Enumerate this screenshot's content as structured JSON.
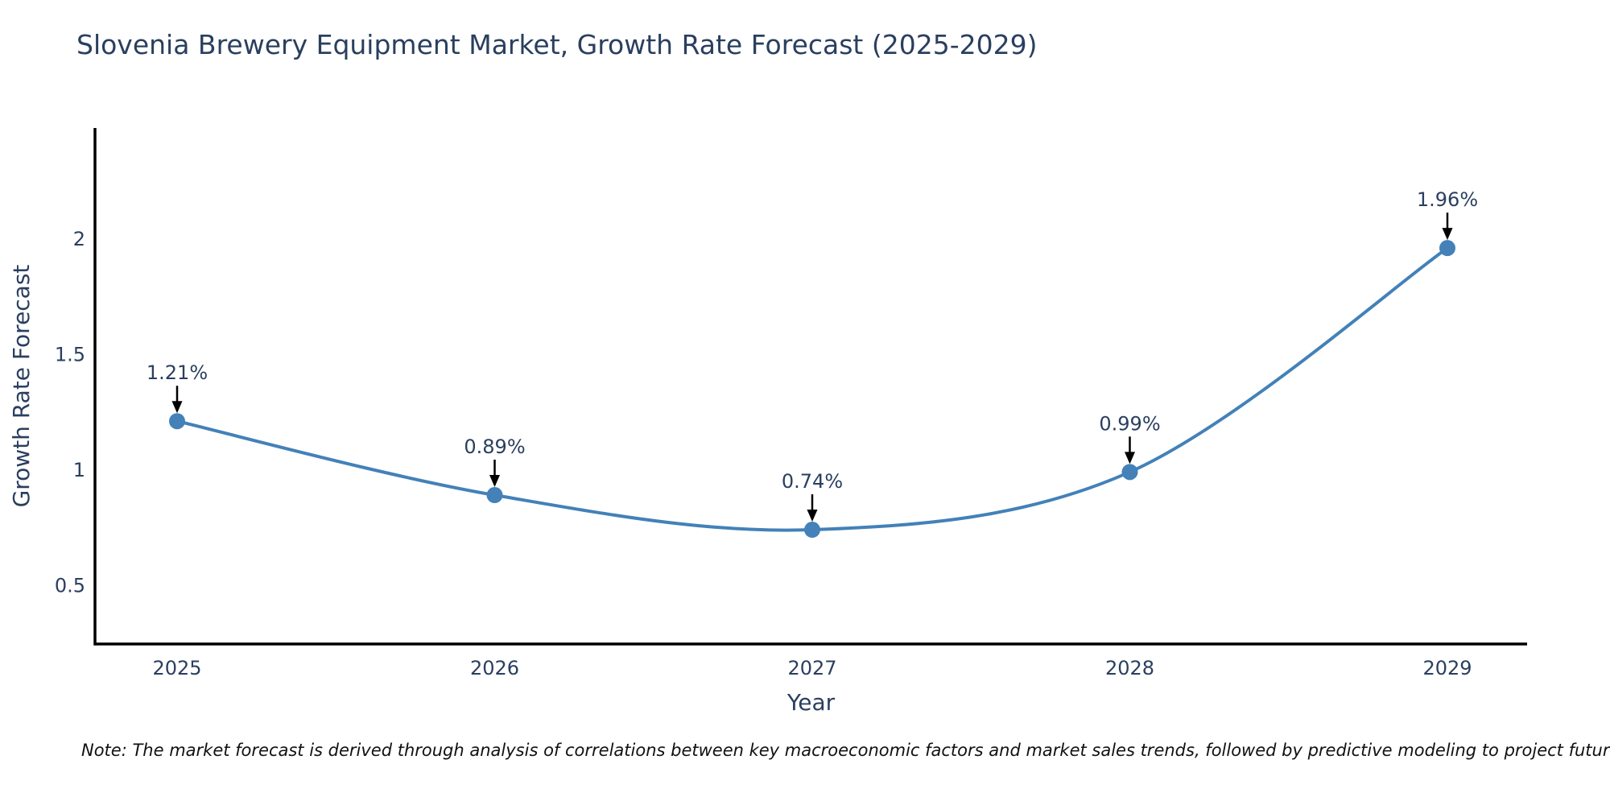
{
  "header": {
    "title": "Slovenia Brewery Equipment Market, Growth Rate Forecast (2025-2029)"
  },
  "chart_data": {
    "type": "line",
    "title": "Slovenia Brewery Equipment Market, Growth Rate Forecast (2025-2029)",
    "xlabel": "Year",
    "ylabel": "Growth Rate Forecast",
    "categories": [
      "2025",
      "2026",
      "2027",
      "2028",
      "2029"
    ],
    "values": [
      1.21,
      0.89,
      0.74,
      0.99,
      1.96
    ],
    "point_labels": [
      "1.21%",
      "0.89%",
      "0.74%",
      "0.99%",
      "1.96%"
    ],
    "yticks": [
      "0.5",
      "1",
      "1.5",
      "2"
    ],
    "ytick_values": [
      0.5,
      1.0,
      1.5,
      2.0
    ],
    "ylim": [
      0.245,
      2.48
    ],
    "grid": false,
    "legend": "none",
    "line_shape": "spline",
    "colors": {
      "line": "#4381b8",
      "marker": "#4381b8",
      "text": "#2a3f5f",
      "axis": "#000000",
      "annotation_arrow": "#000000"
    }
  },
  "footer": {
    "note": "Note: The market forecast is derived through analysis of correlations between key macroeconomic factors and market sales trends, followed by predictive modeling to project future sales"
  }
}
